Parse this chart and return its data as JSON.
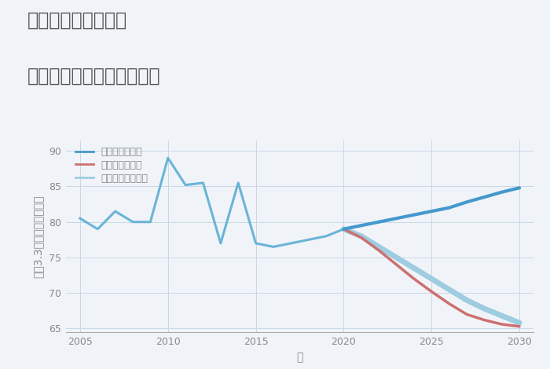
{
  "title_line1": "千葉県野田市平井の",
  "title_line2": "中古マンションの価格推移",
  "xlabel": "年",
  "ylabel": "坪（3.3㎡）単価（万円）",
  "ylim": [
    64.5,
    91.5
  ],
  "yticks": [
    65,
    70,
    75,
    80,
    85,
    90
  ],
  "xlim": [
    2004.2,
    2030.8
  ],
  "xticks": [
    2005,
    2010,
    2015,
    2020,
    2025,
    2030
  ],
  "background_color": "#f0f4f8",
  "plot_bg_color": "#f0f4f8",
  "grid_color": "#c8d8e8",
  "historical_years": [
    2005,
    2006,
    2007,
    2008,
    2009,
    2010,
    2011,
    2012,
    2013,
    2014,
    2015,
    2016,
    2017,
    2018,
    2019,
    2020
  ],
  "historical_values": [
    80.5,
    79.0,
    81.5,
    80.0,
    80.0,
    89.0,
    85.2,
    85.5,
    77.0,
    85.5,
    77.0,
    76.5,
    77.0,
    77.5,
    78.0,
    79.0
  ],
  "forecast_years": [
    2020,
    2021,
    2022,
    2023,
    2024,
    2025,
    2026,
    2027,
    2028,
    2029,
    2030
  ],
  "good_scenario": [
    79.0,
    79.5,
    80.0,
    80.5,
    81.0,
    81.5,
    82.0,
    82.8,
    83.5,
    84.2,
    84.8
  ],
  "bad_scenario": [
    79.0,
    77.8,
    76.0,
    74.0,
    72.0,
    70.2,
    68.5,
    67.0,
    66.2,
    65.6,
    65.3
  ],
  "normal_scenario": [
    79.0,
    78.0,
    76.5,
    75.0,
    73.5,
    72.0,
    70.5,
    69.0,
    67.8,
    66.8,
    65.8
  ],
  "historical_color": "#6ab4d8",
  "good_color": "#4499cc",
  "bad_color": "#cc7070",
  "normal_color": "#9ecce0",
  "legend_entries": [
    "グッドシナリオ",
    "バッドシナリオ",
    "ノーマルシナリオ"
  ],
  "title_color": "#555555",
  "axis_color": "#888888",
  "tick_color": "#888888",
  "title_fontsize": 17,
  "label_fontsize": 10,
  "tick_fontsize": 9,
  "legend_fontsize": 9
}
